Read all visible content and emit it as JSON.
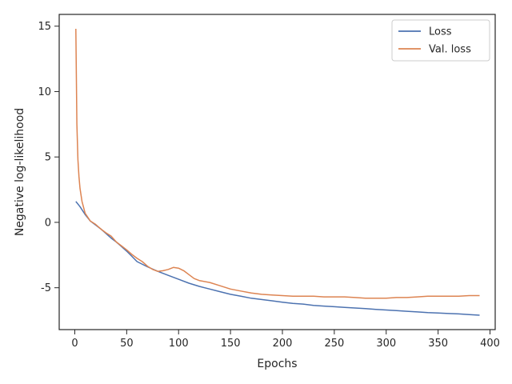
{
  "chart_data": {
    "type": "line",
    "title": "",
    "xlabel": "Epochs",
    "ylabel": "Negative log-likelihood",
    "xlim": [
      -15,
      405
    ],
    "ylim": [
      -8.2,
      15.9
    ],
    "xticks": [
      0,
      50,
      100,
      150,
      200,
      250,
      300,
      350,
      400
    ],
    "yticks": [
      -5,
      0,
      5,
      10,
      15
    ],
    "grid": false,
    "legend_position": "top-right",
    "series": [
      {
        "name": "Loss",
        "color": "#4c72b0",
        "points": [
          [
            1,
            1.6
          ],
          [
            5,
            1.2
          ],
          [
            10,
            0.6
          ],
          [
            15,
            0.1
          ],
          [
            20,
            -0.2
          ],
          [
            25,
            -0.5
          ],
          [
            30,
            -0.85
          ],
          [
            35,
            -1.2
          ],
          [
            40,
            -1.5
          ],
          [
            45,
            -1.85
          ],
          [
            50,
            -2.2
          ],
          [
            55,
            -2.6
          ],
          [
            60,
            -3.0
          ],
          [
            70,
            -3.4
          ],
          [
            80,
            -3.75
          ],
          [
            90,
            -4.05
          ],
          [
            100,
            -4.35
          ],
          [
            110,
            -4.65
          ],
          [
            120,
            -4.9
          ],
          [
            130,
            -5.1
          ],
          [
            140,
            -5.3
          ],
          [
            150,
            -5.5
          ],
          [
            160,
            -5.65
          ],
          [
            170,
            -5.8
          ],
          [
            180,
            -5.9
          ],
          [
            190,
            -6.0
          ],
          [
            200,
            -6.1
          ],
          [
            210,
            -6.2
          ],
          [
            220,
            -6.25
          ],
          [
            230,
            -6.35
          ],
          [
            240,
            -6.4
          ],
          [
            250,
            -6.45
          ],
          [
            260,
            -6.5
          ],
          [
            270,
            -6.55
          ],
          [
            280,
            -6.6
          ],
          [
            290,
            -6.65
          ],
          [
            300,
            -6.7
          ],
          [
            310,
            -6.75
          ],
          [
            320,
            -6.8
          ],
          [
            330,
            -6.85
          ],
          [
            340,
            -6.9
          ],
          [
            350,
            -6.93
          ],
          [
            360,
            -6.97
          ],
          [
            370,
            -7.0
          ],
          [
            380,
            -7.05
          ],
          [
            390,
            -7.1
          ]
        ]
      },
      {
        "name": "Val. loss",
        "color": "#dd8452",
        "points": [
          [
            1,
            14.8
          ],
          [
            2,
            7.5
          ],
          [
            3,
            4.8
          ],
          [
            4,
            3.5
          ],
          [
            5,
            2.6
          ],
          [
            7,
            1.6
          ],
          [
            10,
            0.7
          ],
          [
            15,
            0.1
          ],
          [
            20,
            -0.15
          ],
          [
            25,
            -0.5
          ],
          [
            30,
            -0.8
          ],
          [
            35,
            -1.05
          ],
          [
            40,
            -1.5
          ],
          [
            45,
            -1.8
          ],
          [
            50,
            -2.1
          ],
          [
            55,
            -2.45
          ],
          [
            60,
            -2.75
          ],
          [
            65,
            -3.0
          ],
          [
            70,
            -3.35
          ],
          [
            75,
            -3.6
          ],
          [
            80,
            -3.75
          ],
          [
            85,
            -3.7
          ],
          [
            90,
            -3.6
          ],
          [
            95,
            -3.45
          ],
          [
            100,
            -3.5
          ],
          [
            105,
            -3.7
          ],
          [
            110,
            -4.0
          ],
          [
            115,
            -4.3
          ],
          [
            120,
            -4.45
          ],
          [
            130,
            -4.6
          ],
          [
            140,
            -4.85
          ],
          [
            150,
            -5.1
          ],
          [
            160,
            -5.25
          ],
          [
            170,
            -5.4
          ],
          [
            180,
            -5.5
          ],
          [
            190,
            -5.55
          ],
          [
            200,
            -5.6
          ],
          [
            210,
            -5.65
          ],
          [
            220,
            -5.65
          ],
          [
            230,
            -5.65
          ],
          [
            240,
            -5.7
          ],
          [
            250,
            -5.7
          ],
          [
            260,
            -5.7
          ],
          [
            270,
            -5.75
          ],
          [
            280,
            -5.8
          ],
          [
            290,
            -5.8
          ],
          [
            300,
            -5.8
          ],
          [
            310,
            -5.75
          ],
          [
            320,
            -5.75
          ],
          [
            330,
            -5.7
          ],
          [
            340,
            -5.65
          ],
          [
            350,
            -5.65
          ],
          [
            360,
            -5.65
          ],
          [
            370,
            -5.65
          ],
          [
            380,
            -5.6
          ],
          [
            390,
            -5.6
          ]
        ]
      }
    ]
  }
}
